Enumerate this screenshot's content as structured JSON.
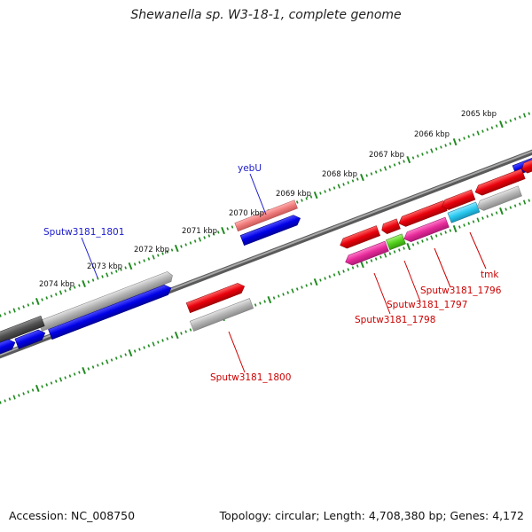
{
  "title": "Shewanella sp. W3-18-1, complete genome",
  "footer": {
    "accession": "Accession: NC_008750",
    "summary": "Topology: circular; Length: 4,708,380 bp; Genes: 4,172"
  },
  "scale_labels": [
    "2065 kbp",
    "2066 kbp",
    "2067 kbp",
    "2068 kbp",
    "2069 kbp",
    "2070 kbp",
    "2071 kbp",
    "2072 kbp",
    "2073 kbp",
    "2074 kbp"
  ],
  "gene_labels": {
    "yebU": "yebU",
    "sputw1801": "Sputw3181_1801",
    "sputw1800": "Sputw3181_1800",
    "sputw1796": "Sputw3181_1796",
    "sputw1797": "Sputw3181_1797",
    "sputw1798": "Sputw3181_1798",
    "tmk": "tmk"
  },
  "colors": {
    "backbone": "#7a7a7a",
    "tick": "#1f8a1f",
    "red_gene": "#e8000b",
    "pink_gene": "#f07a7a",
    "blue_gene": "#0000e6",
    "magenta_gene": "#e62a9a",
    "cyan_gene": "#28c8f0",
    "green_gene": "#52d21c",
    "gray_gene": "#b4b4b4",
    "dark_gene": "#505050",
    "blue_label": "#1a1acc",
    "red_label": "#cc0000"
  }
}
